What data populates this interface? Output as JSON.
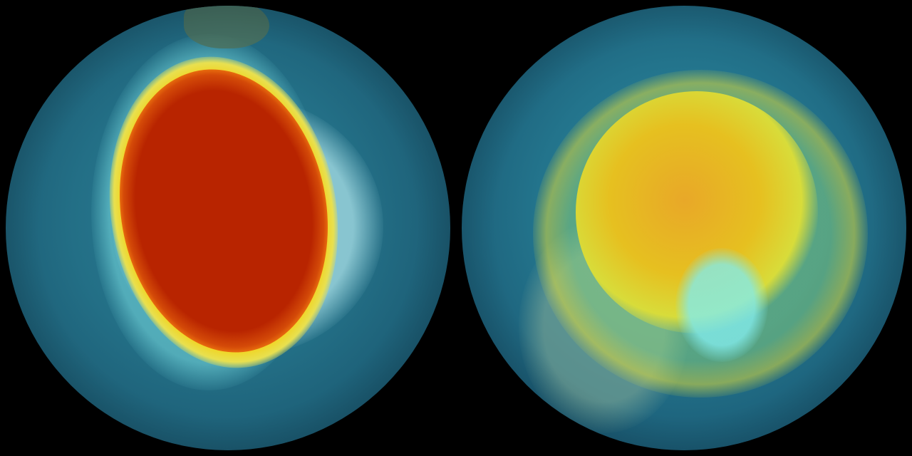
{
  "colors": {
    "background": "#000000",
    "globe_base": "#236f86",
    "vortex_core_left": "#b82400",
    "vortex_rim": "#f2d21a",
    "ice": "#a8e6ea",
    "vortex_core_right": "#e6c020"
  }
}
